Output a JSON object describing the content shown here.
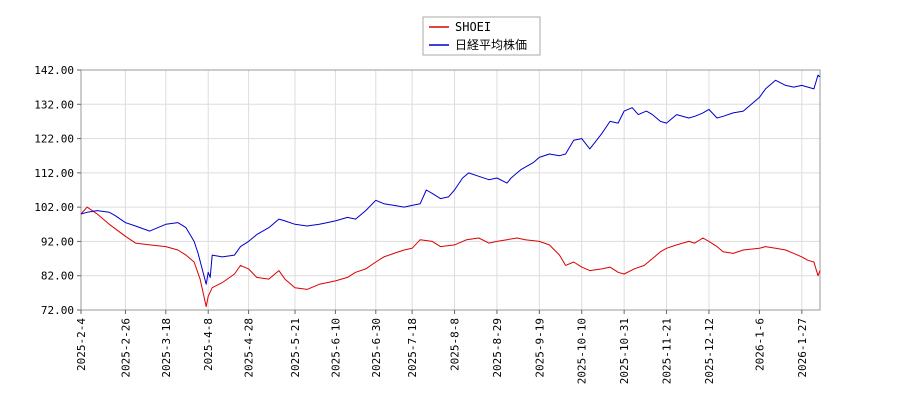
{
  "chart_data": {
    "type": "line",
    "title": "",
    "xlabel": "",
    "ylabel": "",
    "ylim": [
      72,
      142
    ],
    "grid": true,
    "legend_position": "top-center",
    "y_ticks": [
      "142.00",
      "132.00",
      "122.00",
      "112.00",
      "102.00",
      "92.00",
      "82.00",
      "72.00"
    ],
    "x_ticks": [
      "2025-2-4",
      "2025-2-26",
      "2025-3-18",
      "2025-4-8",
      "2025-4-28",
      "2025-5-21",
      "2025-6-10",
      "2025-6-30",
      "2025-7-18",
      "2025-8-8",
      "2025-8-29",
      "2025-9-19",
      "2025-10-10",
      "2025-10-31",
      "2025-11-21",
      "2025-12-12",
      "2026-1-6",
      "2026-1-27"
    ],
    "series": [
      {
        "name": "SHOEI",
        "color": "#dd0000",
        "values": [
          [
            "2025-02-04",
            100.0
          ],
          [
            "2025-02-07",
            102.0
          ],
          [
            "2025-02-12",
            100.0
          ],
          [
            "2025-02-18",
            97.0
          ],
          [
            "2025-02-26",
            93.5
          ],
          [
            "2025-03-03",
            91.5
          ],
          [
            "2025-03-10",
            91.0
          ],
          [
            "2025-03-18",
            90.5
          ],
          [
            "2025-03-24",
            89.5
          ],
          [
            "2025-03-28",
            88.0
          ],
          [
            "2025-04-01",
            86.0
          ],
          [
            "2025-04-04",
            81.0
          ],
          [
            "2025-04-07",
            73.0
          ],
          [
            "2025-04-08",
            76.0
          ],
          [
            "2025-04-10",
            78.5
          ],
          [
            "2025-04-15",
            80.0
          ],
          [
            "2025-04-21",
            82.5
          ],
          [
            "2025-04-24",
            85.0
          ],
          [
            "2025-04-28",
            84.0
          ],
          [
            "2025-05-02",
            81.5
          ],
          [
            "2025-05-08",
            81.0
          ],
          [
            "2025-05-13",
            83.5
          ],
          [
            "2025-05-16",
            81.0
          ],
          [
            "2025-05-21",
            78.5
          ],
          [
            "2025-05-27",
            78.0
          ],
          [
            "2025-06-02",
            79.5
          ],
          [
            "2025-06-06",
            80.0
          ],
          [
            "2025-06-10",
            80.5
          ],
          [
            "2025-06-16",
            81.5
          ],
          [
            "2025-06-20",
            83.0
          ],
          [
            "2025-06-25",
            84.0
          ],
          [
            "2025-06-30",
            86.0
          ],
          [
            "2025-07-04",
            87.5
          ],
          [
            "2025-07-09",
            88.5
          ],
          [
            "2025-07-14",
            89.5
          ],
          [
            "2025-07-18",
            90.0
          ],
          [
            "2025-07-22",
            92.5
          ],
          [
            "2025-07-28",
            92.0
          ],
          [
            "2025-08-01",
            90.5
          ],
          [
            "2025-08-08",
            91.0
          ],
          [
            "2025-08-14",
            92.5
          ],
          [
            "2025-08-20",
            93.0
          ],
          [
            "2025-08-25",
            91.5
          ],
          [
            "2025-08-29",
            92.0
          ],
          [
            "2025-09-03",
            92.5
          ],
          [
            "2025-09-08",
            93.0
          ],
          [
            "2025-09-12",
            92.5
          ],
          [
            "2025-09-19",
            92.0
          ],
          [
            "2025-09-24",
            91.0
          ],
          [
            "2025-09-29",
            88.0
          ],
          [
            "2025-10-02",
            85.0
          ],
          [
            "2025-10-06",
            86.0
          ],
          [
            "2025-10-10",
            84.5
          ],
          [
            "2025-10-14",
            83.5
          ],
          [
            "2025-10-20",
            84.0
          ],
          [
            "2025-10-24",
            84.5
          ],
          [
            "2025-10-28",
            83.0
          ],
          [
            "2025-10-31",
            82.5
          ],
          [
            "2025-11-05",
            84.0
          ],
          [
            "2025-11-10",
            85.0
          ],
          [
            "2025-11-14",
            87.0
          ],
          [
            "2025-11-18",
            89.0
          ],
          [
            "2025-11-21",
            90.0
          ],
          [
            "2025-11-26",
            91.0
          ],
          [
            "2025-12-02",
            92.0
          ],
          [
            "2025-12-05",
            91.5
          ],
          [
            "2025-12-09",
            93.0
          ],
          [
            "2025-12-12",
            92.0
          ],
          [
            "2025-12-16",
            90.5
          ],
          [
            "2025-12-19",
            89.0
          ],
          [
            "2025-12-24",
            88.5
          ],
          [
            "2025-12-29",
            89.5
          ],
          [
            "2026-01-06",
            90.0
          ],
          [
            "2026-01-09",
            90.5
          ],
          [
            "2026-01-14",
            90.0
          ],
          [
            "2026-01-19",
            89.5
          ],
          [
            "2026-01-23",
            88.5
          ],
          [
            "2026-01-27",
            87.5
          ],
          [
            "2026-01-30",
            86.5
          ],
          [
            "2026-02-02",
            86.0
          ],
          [
            "2026-02-04",
            82.0
          ],
          [
            "2026-02-05",
            83.5
          ]
        ]
      },
      {
        "name": "日経平均株価",
        "color": "#0000cc",
        "values": [
          [
            "2025-02-04",
            100.0
          ],
          [
            "2025-02-07",
            100.5
          ],
          [
            "2025-02-12",
            101.0
          ],
          [
            "2025-02-18",
            100.5
          ],
          [
            "2025-02-21",
            99.5
          ],
          [
            "2025-02-26",
            97.5
          ],
          [
            "2025-03-03",
            96.5
          ],
          [
            "2025-03-10",
            95.0
          ],
          [
            "2025-03-14",
            96.0
          ],
          [
            "2025-03-18",
            97.0
          ],
          [
            "2025-03-24",
            97.5
          ],
          [
            "2025-03-28",
            96.0
          ],
          [
            "2025-04-01",
            92.0
          ],
          [
            "2025-04-03",
            88.5
          ],
          [
            "2025-04-07",
            79.5
          ],
          [
            "2025-04-08",
            83.0
          ],
          [
            "2025-04-09",
            81.5
          ],
          [
            "2025-04-10",
            88.0
          ],
          [
            "2025-04-15",
            87.5
          ],
          [
            "2025-04-21",
            88.0
          ],
          [
            "2025-04-24",
            90.5
          ],
          [
            "2025-04-28",
            92.0
          ],
          [
            "2025-05-02",
            94.0
          ],
          [
            "2025-05-08",
            96.0
          ],
          [
            "2025-05-13",
            98.5
          ],
          [
            "2025-05-16",
            98.0
          ],
          [
            "2025-05-21",
            97.0
          ],
          [
            "2025-05-27",
            96.5
          ],
          [
            "2025-06-02",
            97.0
          ],
          [
            "2025-06-06",
            97.5
          ],
          [
            "2025-06-10",
            98.0
          ],
          [
            "2025-06-16",
            99.0
          ],
          [
            "2025-06-20",
            98.5
          ],
          [
            "2025-06-25",
            101.0
          ],
          [
            "2025-06-30",
            104.0
          ],
          [
            "2025-07-04",
            103.0
          ],
          [
            "2025-07-09",
            102.5
          ],
          [
            "2025-07-14",
            102.0
          ],
          [
            "2025-07-18",
            102.5
          ],
          [
            "2025-07-22",
            103.0
          ],
          [
            "2025-07-25",
            107.0
          ],
          [
            "2025-07-28",
            106.0
          ],
          [
            "2025-08-01",
            104.5
          ],
          [
            "2025-08-05",
            105.0
          ],
          [
            "2025-08-08",
            107.0
          ],
          [
            "2025-08-12",
            110.5
          ],
          [
            "2025-08-15",
            112.0
          ],
          [
            "2025-08-20",
            111.0
          ],
          [
            "2025-08-25",
            110.0
          ],
          [
            "2025-08-29",
            110.5
          ],
          [
            "2025-09-03",
            109.0
          ],
          [
            "2025-09-05",
            110.5
          ],
          [
            "2025-09-10",
            113.0
          ],
          [
            "2025-09-16",
            115.0
          ],
          [
            "2025-09-19",
            116.5
          ],
          [
            "2025-09-24",
            117.5
          ],
          [
            "2025-09-29",
            117.0
          ],
          [
            "2025-10-02",
            117.5
          ],
          [
            "2025-10-06",
            121.5
          ],
          [
            "2025-10-10",
            122.0
          ],
          [
            "2025-10-14",
            119.0
          ],
          [
            "2025-10-20",
            123.5
          ],
          [
            "2025-10-24",
            127.0
          ],
          [
            "2025-10-28",
            126.5
          ],
          [
            "2025-10-31",
            130.0
          ],
          [
            "2025-11-04",
            131.0
          ],
          [
            "2025-11-07",
            129.0
          ],
          [
            "2025-11-11",
            130.0
          ],
          [
            "2025-11-14",
            129.0
          ],
          [
            "2025-11-18",
            127.0
          ],
          [
            "2025-11-21",
            126.5
          ],
          [
            "2025-11-26",
            129.0
          ],
          [
            "2025-12-02",
            128.0
          ],
          [
            "2025-12-05",
            128.5
          ],
          [
            "2025-12-09",
            129.5
          ],
          [
            "2025-12-12",
            130.5
          ],
          [
            "2025-12-16",
            128.0
          ],
          [
            "2025-12-19",
            128.5
          ],
          [
            "2025-12-24",
            129.5
          ],
          [
            "2025-12-29",
            130.0
          ],
          [
            "2026-01-06",
            134.0
          ],
          [
            "2026-01-09",
            136.5
          ],
          [
            "2026-01-14",
            139.0
          ],
          [
            "2026-01-19",
            137.5
          ],
          [
            "2026-01-23",
            137.0
          ],
          [
            "2026-01-27",
            137.5
          ],
          [
            "2026-01-30",
            137.0
          ],
          [
            "2026-02-02",
            136.5
          ],
          [
            "2026-02-04",
            140.5
          ],
          [
            "2026-02-05",
            140.0
          ]
        ]
      }
    ]
  }
}
